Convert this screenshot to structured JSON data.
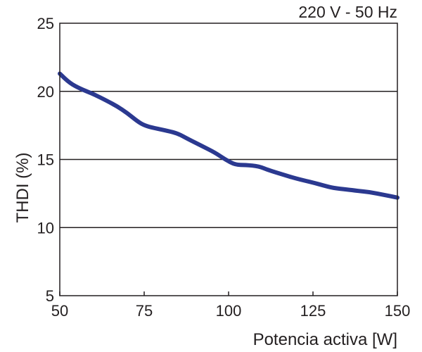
{
  "chart_data": {
    "type": "line",
    "title": "220 V - 50 Hz",
    "xlabel": "Potencia activa [W]",
    "ylabel": "THDI (%)",
    "xlim": [
      50,
      150
    ],
    "ylim": [
      5,
      25
    ],
    "xticks": [
      "50",
      "75",
      "100",
      "125",
      "150"
    ],
    "yticks": [
      "5",
      "10",
      "15",
      "20",
      "25"
    ],
    "grid": "horizontal",
    "line_color": "#2b3990",
    "series": [
      {
        "x": [
          50,
          53,
          56,
          60,
          64,
          67,
          70,
          73,
          75,
          78,
          82,
          85,
          88,
          92,
          96,
          99,
          102,
          105,
          109,
          112,
          116,
          120,
          125,
          128,
          131,
          135,
          138,
          142,
          146,
          150
        ],
        "y": [
          21.3,
          20.6,
          20.2,
          19.8,
          19.3,
          18.9,
          18.4,
          17.8,
          17.5,
          17.3,
          17.1,
          16.9,
          16.5,
          16.0,
          15.5,
          15.0,
          14.6,
          14.6,
          14.5,
          14.2,
          13.9,
          13.6,
          13.3,
          13.1,
          12.9,
          12.8,
          12.7,
          12.6,
          12.4,
          12.2
        ]
      }
    ]
  }
}
